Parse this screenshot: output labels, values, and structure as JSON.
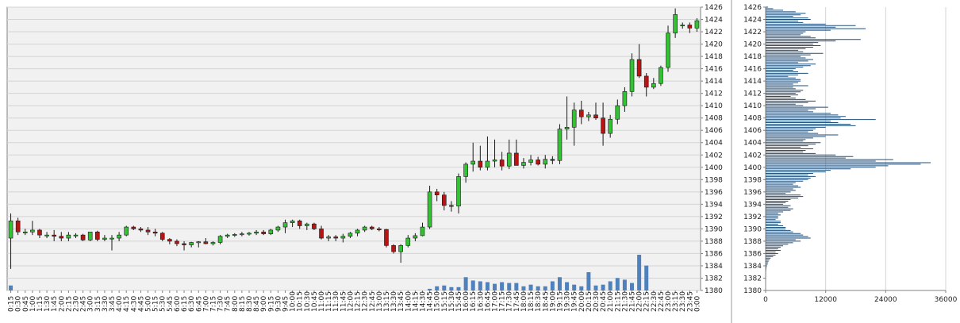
{
  "colors": {
    "background": "#ffffff",
    "plot_bg": "#f1f1f1",
    "grid": "#d4d4d4",
    "axis": "#808080",
    "up": "#33c233",
    "down": "#b81414",
    "wick": "#1a1a1a",
    "volume": "#4f81bd",
    "profile": "#1f4e79",
    "separator": "#9a9a9a"
  },
  "chart_data": [
    {
      "type": "candlestick",
      "title": "",
      "xlabel": "",
      "ylabel": "",
      "ylim": [
        1380,
        1426
      ],
      "yticks": [
        1380,
        1382,
        1384,
        1386,
        1388,
        1390,
        1392,
        1394,
        1396,
        1398,
        1400,
        1402,
        1404,
        1406,
        1408,
        1410,
        1412,
        1414,
        1416,
        1418,
        1420,
        1422,
        1424,
        1426
      ],
      "grid": true,
      "x_labels": [
        "0:15",
        "0:30",
        "0:45",
        "1:00",
        "1:15",
        "1:30",
        "1:45",
        "2:00",
        "2:15",
        "2:30",
        "2:45",
        "3:00",
        "3:15",
        "3:30",
        "3:45",
        "4:00",
        "4:15",
        "4:30",
        "4:45",
        "5:00",
        "5:15",
        "5:30",
        "5:45",
        "6:00",
        "6:15",
        "6:30",
        "6:45",
        "7:00",
        "7:15",
        "7:30",
        "7:45",
        "8:00",
        "8:15",
        "8:30",
        "8:45",
        "9:00",
        "9:15",
        "9:30",
        "9:45",
        "10:00",
        "10:15",
        "10:30",
        "10:45",
        "11:00",
        "11:15",
        "11:30",
        "11:45",
        "12:00",
        "12:15",
        "12:30",
        "12:45",
        "13:00",
        "13:15",
        "13:30",
        "13:45",
        "14:00",
        "14:15",
        "14:30",
        "14:45",
        "15:00",
        "15:15",
        "15:30",
        "15:45",
        "16:00",
        "16:15",
        "16:30",
        "16:45",
        "17:00",
        "17:15",
        "17:30",
        "17:45",
        "18:00",
        "18:15",
        "18:30",
        "18:45",
        "19:00",
        "19:15",
        "19:30",
        "19:45",
        "20:00",
        "20:15",
        "20:30",
        "20:45",
        "21:00",
        "21:15",
        "21:30",
        "21:45",
        "22:00",
        "22:15",
        "22:30",
        "22:45",
        "23:00",
        "23:15",
        "23:30",
        "23:45",
        "0:00"
      ],
      "candles": [
        [
          1388.5,
          1392.5,
          1383.5,
          1391.3
        ],
        [
          1391.3,
          1391.8,
          1389.0,
          1389.5
        ],
        [
          1389.5,
          1390.0,
          1389.0,
          1389.5
        ],
        [
          1389.5,
          1391.3,
          1389.0,
          1389.8
        ],
        [
          1389.8,
          1390.0,
          1388.5,
          1389.0
        ],
        [
          1389.0,
          1389.5,
          1388.5,
          1389.0
        ],
        [
          1389.0,
          1389.8,
          1388.0,
          1388.8
        ],
        [
          1388.8,
          1389.5,
          1388.0,
          1388.5
        ],
        [
          1388.5,
          1389.5,
          1388.0,
          1389.0
        ],
        [
          1389.0,
          1389.3,
          1388.5,
          1389.0
        ],
        [
          1389.0,
          1389.2,
          1388.0,
          1388.2
        ],
        [
          1388.2,
          1389.5,
          1388.0,
          1389.5
        ],
        [
          1389.5,
          1389.7,
          1388.0,
          1388.3
        ],
        [
          1388.3,
          1389.0,
          1388.0,
          1388.5
        ],
        [
          1388.5,
          1389.0,
          1386.5,
          1388.5
        ],
        [
          1388.5,
          1389.5,
          1388.0,
          1389.0
        ],
        [
          1389.0,
          1390.5,
          1388.8,
          1390.3
        ],
        [
          1390.3,
          1390.5,
          1389.8,
          1390.0
        ],
        [
          1390.0,
          1390.3,
          1389.5,
          1389.8
        ],
        [
          1389.8,
          1390.3,
          1389.0,
          1389.5
        ],
        [
          1389.5,
          1390.0,
          1388.8,
          1389.3
        ],
        [
          1389.3,
          1389.5,
          1388.0,
          1388.3
        ],
        [
          1388.3,
          1388.5,
          1387.5,
          1388.0
        ],
        [
          1388.0,
          1388.3,
          1387.2,
          1387.6
        ],
        [
          1387.6,
          1388.0,
          1386.5,
          1387.4
        ],
        [
          1387.4,
          1387.9,
          1387.0,
          1387.8
        ],
        [
          1387.8,
          1388.0,
          1387.0,
          1387.9
        ],
        [
          1387.9,
          1388.5,
          1387.5,
          1387.6
        ],
        [
          1387.6,
          1388.0,
          1387.3,
          1387.8
        ],
        [
          1387.8,
          1389.0,
          1387.5,
          1388.8
        ],
        [
          1388.8,
          1389.2,
          1388.5,
          1389.0
        ],
        [
          1389.0,
          1389.3,
          1388.7,
          1389.1
        ],
        [
          1389.1,
          1389.5,
          1388.8,
          1389.2
        ],
        [
          1389.2,
          1389.5,
          1388.9,
          1389.3
        ],
        [
          1389.3,
          1389.8,
          1389.0,
          1389.5
        ],
        [
          1389.5,
          1389.8,
          1389.0,
          1389.2
        ],
        [
          1389.2,
          1390.0,
          1389.0,
          1389.8
        ],
        [
          1389.8,
          1390.5,
          1389.5,
          1390.3
        ],
        [
          1390.3,
          1391.5,
          1389.3,
          1391.0
        ],
        [
          1391.0,
          1391.5,
          1390.3,
          1391.3
        ],
        [
          1391.3,
          1391.5,
          1390.0,
          1390.5
        ],
        [
          1390.5,
          1391.0,
          1389.8,
          1390.8
        ],
        [
          1390.8,
          1391.0,
          1389.8,
          1390.0
        ],
        [
          1390.0,
          1390.5,
          1388.3,
          1388.5
        ],
        [
          1388.5,
          1389.0,
          1388.0,
          1388.7
        ],
        [
          1388.7,
          1389.0,
          1388.0,
          1388.5
        ],
        [
          1388.5,
          1389.2,
          1387.8,
          1388.8
        ],
        [
          1388.8,
          1389.5,
          1388.5,
          1389.3
        ],
        [
          1389.3,
          1390.0,
          1388.8,
          1389.8
        ],
        [
          1389.8,
          1390.5,
          1389.5,
          1390.3
        ],
        [
          1390.3,
          1390.5,
          1389.8,
          1390.0
        ],
        [
          1390.0,
          1390.3,
          1389.6,
          1389.9
        ],
        [
          1389.9,
          1390.0,
          1387.0,
          1387.3
        ],
        [
          1387.3,
          1387.5,
          1386.0,
          1386.3
        ],
        [
          1386.3,
          1387.5,
          1384.5,
          1387.3
        ],
        [
          1387.3,
          1389.0,
          1387.0,
          1388.5
        ],
        [
          1388.5,
          1389.3,
          1388.0,
          1388.9
        ],
        [
          1388.9,
          1391.0,
          1388.8,
          1390.3
        ],
        [
          1390.3,
          1397.0,
          1390.0,
          1396.0
        ],
        [
          1396.0,
          1396.5,
          1394.5,
          1395.5
        ],
        [
          1395.5,
          1396.0,
          1393.0,
          1393.8
        ],
        [
          1393.8,
          1394.5,
          1392.8,
          1393.7
        ],
        [
          1393.7,
          1399.0,
          1392.5,
          1398.5
        ],
        [
          1398.5,
          1400.8,
          1397.5,
          1400.5
        ],
        [
          1400.5,
          1404.0,
          1399.3,
          1401.0
        ],
        [
          1401.0,
          1403.5,
          1399.5,
          1400.0
        ],
        [
          1400.0,
          1405.0,
          1399.5,
          1401.0
        ],
        [
          1401.0,
          1404.5,
          1400.0,
          1401.2
        ],
        [
          1401.2,
          1402.5,
          1399.5,
          1400.2
        ],
        [
          1400.2,
          1404.5,
          1399.7,
          1402.3
        ],
        [
          1402.3,
          1404.5,
          1400.5,
          1400.3
        ],
        [
          1400.3,
          1401.5,
          1399.8,
          1400.8
        ],
        [
          1400.8,
          1402.0,
          1400.3,
          1401.2
        ],
        [
          1401.2,
          1401.7,
          1400.3,
          1400.5
        ],
        [
          1400.5,
          1402.0,
          1399.8,
          1401.3
        ],
        [
          1401.3,
          1401.8,
          1400.5,
          1401.1
        ],
        [
          1401.1,
          1407.0,
          1400.5,
          1406.2
        ],
        [
          1406.2,
          1411.5,
          1404.5,
          1406.5
        ],
        [
          1406.5,
          1410.5,
          1403.5,
          1409.3
        ],
        [
          1409.3,
          1410.8,
          1407.0,
          1408.2
        ],
        [
          1408.2,
          1409.0,
          1407.5,
          1408.5
        ],
        [
          1408.5,
          1410.5,
          1407.7,
          1408.0
        ],
        [
          1408.0,
          1410.5,
          1403.5,
          1405.5
        ],
        [
          1405.5,
          1408.5,
          1404.8,
          1407.8
        ],
        [
          1407.8,
          1411.0,
          1407.0,
          1410.0
        ],
        [
          1410.0,
          1413.0,
          1409.0,
          1412.3
        ],
        [
          1412.3,
          1418.5,
          1411.5,
          1417.5
        ],
        [
          1417.5,
          1420.0,
          1414.5,
          1414.8
        ],
        [
          1414.8,
          1415.3,
          1411.5,
          1413.0
        ],
        [
          1413.0,
          1414.5,
          1412.7,
          1413.6
        ],
        [
          1413.6,
          1416.5,
          1413.2,
          1416.2
        ],
        [
          1416.2,
          1423.0,
          1415.5,
          1421.8
        ],
        [
          1421.8,
          1425.8,
          1421.0,
          1424.8
        ],
        [
          1423.0,
          1423.5,
          1422.5,
          1423.1
        ],
        [
          1423.1,
          1423.5,
          1421.8,
          1422.6
        ],
        [
          1422.6,
          1424.2,
          1422.0,
          1423.8
        ]
      ],
      "volume": [
        6,
        0,
        0,
        0,
        0,
        0,
        0,
        0,
        0,
        0,
        0,
        0,
        0,
        0,
        0,
        0,
        0,
        0,
        0,
        0,
        0,
        0,
        0,
        0,
        0,
        0,
        0,
        0,
        0,
        0,
        0,
        0,
        0,
        0,
        0,
        0,
        0,
        0,
        0,
        0,
        0,
        0,
        0,
        0,
        0,
        0,
        0,
        0,
        0,
        0,
        0,
        0,
        0,
        0,
        0,
        0,
        0,
        0,
        2,
        5,
        6,
        4,
        4,
        16,
        12,
        11,
        10,
        8,
        10,
        9,
        9,
        5,
        7,
        5,
        5,
        11,
        16,
        10,
        7,
        5,
        22,
        6,
        7,
        11,
        15,
        13,
        9,
        43,
        30,
        0,
        0,
        0,
        0,
        0,
        0,
        0
      ]
    },
    {
      "type": "bar",
      "orientation": "horizontal",
      "title": "",
      "xlabel": "",
      "ylabel": "",
      "xlim": [
        0,
        36000
      ],
      "xticks": [
        0,
        12000,
        24000,
        36000
      ],
      "ylim": [
        1380,
        1426
      ],
      "yticks": [
        1380,
        1382,
        1384,
        1386,
        1388,
        1390,
        1392,
        1394,
        1396,
        1398,
        1400,
        1402,
        1404,
        1406,
        1408,
        1410,
        1412,
        1414,
        1416,
        1418,
        1420,
        1422,
        1424,
        1426
      ],
      "grid": true,
      "price_levels_start": 1426,
      "price_level_step": -0.25,
      "volumes": [
        500,
        1500,
        3500,
        6000,
        8000,
        7000,
        5500,
        8500,
        9000,
        6500,
        7500,
        12000,
        18000,
        14000,
        20000,
        13000,
        8000,
        7500,
        7000,
        9000,
        10000,
        19000,
        14000,
        10500,
        9500,
        11000,
        9500,
        8000,
        6500,
        7500,
        11500,
        9000,
        7000,
        8000,
        9500,
        8500,
        6500,
        10000,
        9000,
        7500,
        6000,
        5500,
        6500,
        8500,
        6500,
        4500,
        6000,
        7000,
        7000,
        6500,
        5500,
        8500,
        5500,
        6000,
        7500,
        7000,
        6000,
        6500,
        5000,
        6000,
        8000,
        10000,
        8500,
        6000,
        7500,
        12500,
        10000,
        8500,
        9500,
        13000,
        14500,
        16000,
        15000,
        22000,
        13000,
        14500,
        17000,
        18000,
        12000,
        10000,
        9500,
        8500,
        10500,
        14500,
        12000,
        9500,
        8000,
        7500,
        11000,
        10000,
        8500,
        7000,
        9500,
        8000,
        7500,
        10000,
        14000,
        17500,
        16000,
        25500,
        22000,
        33000,
        31000,
        24500,
        22000,
        17000,
        13000,
        12000,
        9500,
        8500,
        10000,
        9000,
        8500,
        7500,
        6000,
        5500,
        6500,
        7000,
        5500,
        6000,
        5000,
        4000,
        7000,
        7500,
        6500,
        5000,
        4500,
        4000,
        3500,
        5000,
        4500,
        5500,
        5000,
        3500,
        2500,
        3000,
        2500,
        2500,
        2000,
        3000,
        3000,
        2500,
        3500,
        4000,
        4000,
        5000,
        5500,
        7000,
        7500,
        8500,
        9000,
        6000,
        7000,
        5500,
        4500,
        3500,
        3000,
        2500,
        3000,
        2000,
        2500,
        2000,
        1500,
        1000,
        800,
        600,
        500,
        400,
        300,
        200,
        150,
        100,
        80,
        60,
        50,
        40,
        30,
        20,
        10,
        5
      ]
    }
  ]
}
